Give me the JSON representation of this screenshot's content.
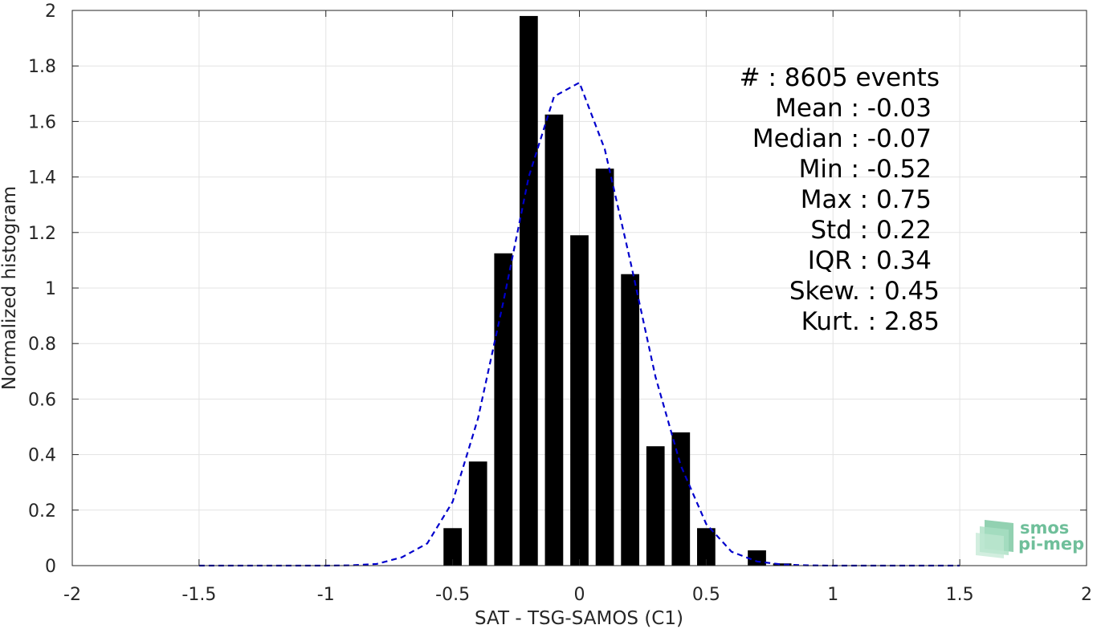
{
  "chart_data": {
    "type": "bar",
    "xlabel": "SAT - TSG-SAMOS (C1)",
    "ylabel": "Normalized histogram",
    "xlim": [
      -2,
      2
    ],
    "ylim": [
      0,
      2
    ],
    "xticks": [
      -2,
      -1.5,
      -1,
      -0.5,
      0,
      0.5,
      1,
      1.5,
      2
    ],
    "xtick_labels": [
      "-2",
      "-1.5",
      "-1",
      "-0.5",
      "0",
      "0.5",
      "1",
      "1.5",
      "2"
    ],
    "yticks": [
      0,
      0.2,
      0.4,
      0.6,
      0.8,
      1,
      1.2,
      1.4,
      1.6,
      1.8,
      2
    ],
    "ytick_labels": [
      "0",
      "0.2",
      "0.4",
      "0.6",
      "0.8",
      "1",
      "1.2",
      "1.4",
      "1.6",
      "1.8",
      "2"
    ],
    "grid": true,
    "bars": {
      "x": [
        -0.5,
        -0.4,
        -0.3,
        -0.2,
        -0.1,
        0.0,
        0.1,
        0.2,
        0.3,
        0.4,
        0.5,
        0.6,
        0.7,
        0.8
      ],
      "values": [
        0.135,
        0.375,
        1.125,
        1.98,
        1.625,
        1.19,
        1.43,
        1.05,
        0.43,
        0.48,
        0.135,
        0.0,
        0.055,
        0.008
      ],
      "color": "#000000"
    },
    "fit_curve": {
      "style": "dashed",
      "color": "#0000cc",
      "x": [
        -1.5,
        -1.4,
        -1.3,
        -1.2,
        -1.1,
        -1.0,
        -0.9,
        -0.8,
        -0.7,
        -0.6,
        -0.5,
        -0.4,
        -0.3,
        -0.2,
        -0.1,
        0.0,
        0.1,
        0.2,
        0.3,
        0.4,
        0.5,
        0.6,
        0.7,
        0.8,
        0.9,
        1.0,
        1.1,
        1.2,
        1.3,
        1.4,
        1.5
      ],
      "y": [
        0,
        0,
        0,
        0,
        0,
        0,
        0.001,
        0.006,
        0.03,
        0.08,
        0.23,
        0.53,
        0.95,
        1.4,
        1.69,
        1.74,
        1.5,
        1.1,
        0.68,
        0.36,
        0.15,
        0.05,
        0.015,
        0.004,
        0.001,
        0,
        0,
        0,
        0,
        0,
        0
      ]
    },
    "annotations": [
      "#  : 8605 events",
      "Mean : -0.03",
      "Median : -0.07",
      "Min : -0.52",
      "Max : 0.75",
      "Std : 0.22",
      "IQR : 0.34",
      "Skew. : 0.45",
      "Kurt. : 2.85"
    ]
  },
  "logo": {
    "line1": "smos",
    "line2": "pi-mep",
    "color": "#6fbf9a"
  }
}
